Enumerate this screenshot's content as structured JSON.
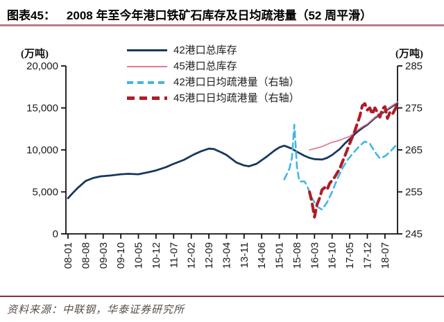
{
  "header": {
    "figure_label": "图表45：",
    "title": "2008 年至今年港口铁矿石库存及日均疏港量（52 周平滑）"
  },
  "footer": {
    "source": "资料来源：中联钢，华泰证券研究所"
  },
  "colors": {
    "title_rule": "#bd7a88",
    "footer_rule": "#8a2a38",
    "axis": "#111111"
  },
  "chart_data": {
    "type": "line",
    "title": "2008 年至今年港口铁矿石库存及日均疏港量（52 周平滑）",
    "legend_position": "inside-top-center",
    "grid": false,
    "left_axis": {
      "unit": "(万吨)",
      "range": [
        0,
        20000
      ],
      "tick_values": [
        0,
        5000,
        10000,
        15000,
        20000
      ],
      "tick_labels": [
        "0",
        "5,000",
        "10,000",
        "15,000",
        "20,000"
      ]
    },
    "right_axis": {
      "unit": "(万吨)",
      "range": [
        245,
        285
      ],
      "tick_values": [
        245,
        255,
        265,
        275,
        285
      ],
      "tick_labels": [
        "245",
        "255",
        "265",
        "275",
        "285"
      ]
    },
    "x_axis": {
      "start": "08-01",
      "end": "18-12",
      "months_total": 131,
      "tick_interval_months": 7,
      "tick_labels": [
        "08-01",
        "08-08",
        "09-03",
        "09-10",
        "10-05",
        "10-12",
        "11-07",
        "12-02",
        "12-09",
        "13-04",
        "13-11",
        "14-06",
        "15-01",
        "15-08",
        "16-03",
        "16-10",
        "17-05",
        "17-12",
        "18-07"
      ]
    },
    "series": [
      {
        "name": "42港口总库存",
        "axis": "left",
        "color": "#17375e",
        "style": "solid",
        "width": 2.8,
        "dash": null,
        "points": [
          [
            "08-01",
            4250
          ],
          [
            "08-03",
            4900
          ],
          [
            "08-05",
            5500
          ],
          [
            "08-08",
            6300
          ],
          [
            "08-11",
            6650
          ],
          [
            "09-02",
            6850
          ],
          [
            "09-06",
            6950
          ],
          [
            "09-10",
            7100
          ],
          [
            "10-01",
            7150
          ],
          [
            "10-05",
            7100
          ],
          [
            "10-09",
            7350
          ],
          [
            "10-12",
            7550
          ],
          [
            "11-04",
            7950
          ],
          [
            "11-07",
            8350
          ],
          [
            "11-11",
            8800
          ],
          [
            "12-03",
            9450
          ],
          [
            "12-06",
            9850
          ],
          [
            "12-09",
            10150
          ],
          [
            "12-11",
            10100
          ],
          [
            "13-02",
            9700
          ],
          [
            "13-04",
            9400
          ],
          [
            "13-08",
            8500
          ],
          [
            "13-11",
            8150
          ],
          [
            "14-01",
            8050
          ],
          [
            "14-04",
            8350
          ],
          [
            "14-08",
            9200
          ],
          [
            "14-11",
            9900
          ],
          [
            "15-01",
            10300
          ],
          [
            "15-03",
            10500
          ],
          [
            "15-06",
            10150
          ],
          [
            "15-08",
            9780
          ],
          [
            "15-11",
            9300
          ],
          [
            "16-01",
            9050
          ],
          [
            "16-03",
            8900
          ],
          [
            "16-06",
            8850
          ],
          [
            "16-08",
            9050
          ],
          [
            "16-10",
            9400
          ],
          [
            "17-01",
            10100
          ],
          [
            "17-03",
            10750
          ],
          [
            "17-05",
            11300
          ],
          [
            "17-08",
            12150
          ],
          [
            "17-10",
            12600
          ],
          [
            "17-12",
            13000
          ],
          [
            "18-03",
            13800
          ],
          [
            "18-07",
            14600
          ],
          [
            "18-10",
            15200
          ],
          [
            "18-12",
            15550
          ]
        ]
      },
      {
        "name": "45港口总库存",
        "axis": "left",
        "color": "#e07b8e",
        "style": "solid",
        "width": 1.8,
        "dash": null,
        "points": [
          [
            "16-01",
            10000
          ],
          [
            "16-03",
            10150
          ],
          [
            "16-06",
            10400
          ],
          [
            "16-08",
            10650
          ],
          [
            "16-10",
            10900
          ],
          [
            "17-01",
            11150
          ],
          [
            "17-03",
            11400
          ],
          [
            "17-05",
            11600
          ],
          [
            "17-08",
            12350
          ],
          [
            "17-10",
            12750
          ],
          [
            "17-12",
            13100
          ],
          [
            "18-03",
            13900
          ],
          [
            "18-07",
            14700
          ],
          [
            "18-10",
            15300
          ],
          [
            "18-12",
            15700
          ]
        ]
      },
      {
        "name": "42港口日均疏港量（右轴）",
        "axis": "right",
        "color": "#3fb6e8",
        "style": "dashed",
        "width": 2.6,
        "dash": [
          9,
          6
        ],
        "points": [
          [
            "15-03",
            258
          ],
          [
            "15-05",
            260.5
          ],
          [
            "15-06",
            263
          ],
          [
            "15-07",
            271
          ],
          [
            "15-08",
            261
          ],
          [
            "15-09",
            257.5
          ],
          [
            "15-11",
            257.5
          ],
          [
            "15-12",
            256.5
          ],
          [
            "16-02",
            253.5
          ],
          [
            "16-04",
            251.5
          ],
          [
            "16-06",
            250.8
          ],
          [
            "16-08",
            252.5
          ],
          [
            "16-10",
            255
          ],
          [
            "16-12",
            258
          ],
          [
            "17-02",
            260.5
          ],
          [
            "17-04",
            262.5
          ],
          [
            "17-06",
            264
          ],
          [
            "17-09",
            266
          ],
          [
            "17-11",
            267
          ],
          [
            "18-01",
            266.5
          ],
          [
            "18-03",
            264.5
          ],
          [
            "18-05",
            263
          ],
          [
            "18-07",
            263.5
          ],
          [
            "18-09",
            264.5
          ],
          [
            "18-12",
            266.5
          ]
        ]
      },
      {
        "name": "45港口日均疏港量（右轴）",
        "axis": "right",
        "color": "#b01c26",
        "style": "dashed",
        "width": 4.2,
        "dash": [
          11,
          7
        ],
        "points": [
          [
            "16-01",
            255
          ],
          [
            "16-02",
            252.5
          ],
          [
            "16-03",
            249
          ],
          [
            "16-04",
            252
          ],
          [
            "16-05",
            253.5
          ],
          [
            "16-06",
            255.5
          ],
          [
            "16-07",
            256
          ],
          [
            "16-08",
            255.5
          ],
          [
            "16-09",
            257
          ],
          [
            "16-11",
            258.5
          ],
          [
            "17-01",
            260.5
          ],
          [
            "17-03",
            263.5
          ],
          [
            "17-05",
            266.5
          ],
          [
            "17-07",
            269.5
          ],
          [
            "17-09",
            273
          ],
          [
            "17-10",
            275.5
          ],
          [
            "17-11",
            276
          ],
          [
            "17-12",
            274.5
          ],
          [
            "18-01",
            275
          ],
          [
            "18-02",
            273.5
          ],
          [
            "18-03",
            275
          ],
          [
            "18-04",
            274
          ],
          [
            "18-05",
            272.8
          ],
          [
            "18-06",
            274.8
          ],
          [
            "18-07",
            275.3
          ],
          [
            "18-08",
            272.5
          ],
          [
            "18-09",
            274
          ],
          [
            "18-10",
            273.5
          ],
          [
            "18-12",
            275.8
          ]
        ]
      }
    ]
  }
}
